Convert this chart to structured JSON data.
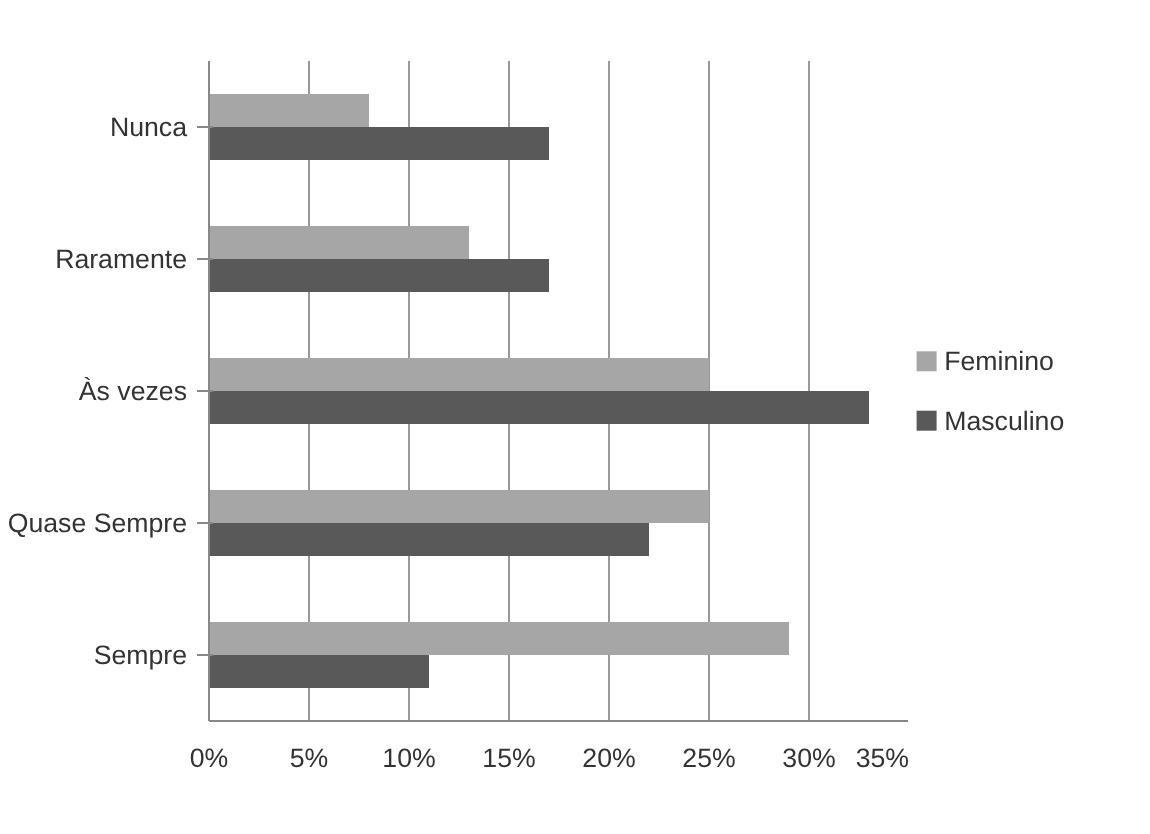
{
  "chart_data": {
    "type": "bar",
    "orientation": "horizontal",
    "categories": [
      "Nunca",
      "Raramente",
      "Às vezes",
      "Quase Sempre",
      "Sempre"
    ],
    "series": [
      {
        "name": "Feminino",
        "color": "#a6a6a6",
        "values": [
          8,
          13,
          25,
          25,
          29
        ]
      },
      {
        "name": "Masculino",
        "color": "#595959",
        "values": [
          17,
          17,
          33,
          22,
          11
        ]
      }
    ],
    "xlim": [
      0,
      35
    ],
    "xticks": [
      {
        "value": 0,
        "label": "0%"
      },
      {
        "value": 5,
        "label": "5%"
      },
      {
        "value": 10,
        "label": "10%"
      },
      {
        "value": 15,
        "label": "15%"
      },
      {
        "value": 20,
        "label": "20%"
      },
      {
        "value": 25,
        "label": "25%"
      },
      {
        "value": 30,
        "label": "30%"
      },
      {
        "value": 35,
        "label": "35%"
      }
    ],
    "grid": "x",
    "legend": "right"
  }
}
